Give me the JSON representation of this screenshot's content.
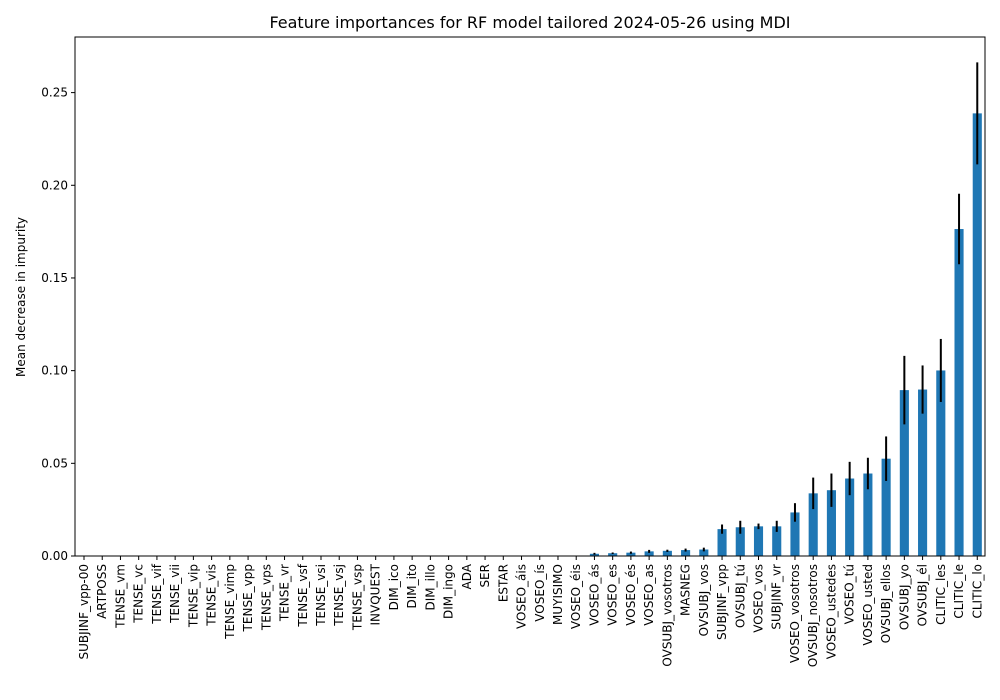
{
  "chart_data": {
    "type": "bar",
    "title": "Feature importances for RF model tailored  2024-05-26 using MDI",
    "xlabel": "",
    "ylabel": "Mean decrease in impurity",
    "ylim": [
      0,
      0.28
    ],
    "yticks": [
      0.0,
      0.05,
      0.1,
      0.15,
      0.2,
      0.25
    ],
    "ytick_labels": [
      "0.00",
      "0.05",
      "0.10",
      "0.15",
      "0.20",
      "0.25"
    ],
    "grid": false,
    "legend": false,
    "bar_color": "#1f77b4",
    "error_bar_color": "#000000",
    "categories": [
      "SUBJINF_vpp-00",
      "ARTPOSS",
      "TENSE_vm",
      "TENSE_vc",
      "TENSE_vif",
      "TENSE_vii",
      "TENSE_vip",
      "TENSE_vis",
      "TENSE_vimp",
      "TENSE_vpp",
      "TENSE_vps",
      "TENSE_vr",
      "TENSE_vsf",
      "TENSE_vsi",
      "TENSE_vsj",
      "TENSE_vsp",
      "INVQUEST",
      "DIM_ico",
      "DIM_ito",
      "DIM_illo",
      "DIM_ingo",
      "ADA",
      "SER",
      "ESTAR",
      "VOSEO_áis",
      "VOSEO_ís",
      "MUYISIMO",
      "VOSEO_éis",
      "VOSEO_ás",
      "VOSEO_es",
      "VOSEO_és",
      "VOSEO_as",
      "OVSUBJ_vosotros",
      "MASNEG",
      "OVSUBJ_vos",
      "SUBJINF_vpp",
      "OVSUBJ_tú",
      "VOSEO_vos",
      "SUBJINF_vr",
      "VOSEO_vosotros",
      "OVSUBJ_nosotros",
      "VOSEO_ustedes",
      "VOSEO_tú",
      "VOSEO_usted",
      "OVSUBJ_ellos",
      "OVSUBJ_yo",
      "OVSUBJ_él",
      "CLITIC_les",
      "CLITIC_le",
      "CLITIC_lo"
    ],
    "values": [
      0,
      0,
      0,
      0,
      0,
      0,
      0,
      0,
      0,
      0,
      0,
      0,
      0,
      0,
      0,
      0,
      0,
      0,
      0,
      0,
      0,
      0,
      0,
      0,
      0,
      0,
      0,
      0,
      0.0012,
      0.0015,
      0.0018,
      0.0025,
      0.0028,
      0.0032,
      0.0035,
      0.0145,
      0.0155,
      0.016,
      0.016,
      0.0235,
      0.0338,
      0.0355,
      0.0418,
      0.0445,
      0.0525,
      0.0895,
      0.0898,
      0.1001,
      0.1764,
      0.2388
    ],
    "errors": [
      0,
      0,
      0,
      0,
      0,
      0,
      0,
      0,
      0,
      0,
      0,
      0,
      0,
      0,
      0,
      0,
      0,
      0,
      0,
      0,
      0,
      0,
      0,
      0,
      0,
      0,
      0,
      0,
      0.0005,
      0.0004,
      0.0006,
      0.0008,
      0.0006,
      0.0008,
      0.001,
      0.0025,
      0.0035,
      0.0015,
      0.003,
      0.005,
      0.0085,
      0.009,
      0.009,
      0.0085,
      0.012,
      0.0185,
      0.013,
      0.017,
      0.019,
      0.0275
    ]
  }
}
